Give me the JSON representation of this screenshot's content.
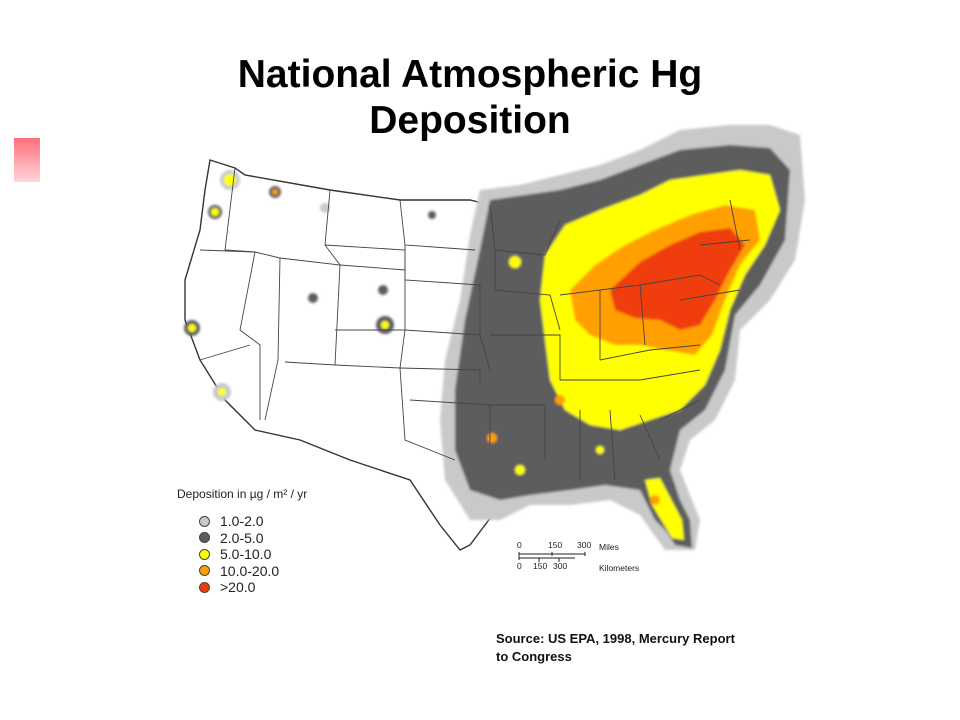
{
  "title_line1": "National Atmospheric Hg",
  "title_line2": "Deposition",
  "legend": {
    "title": "Deposition in µg / m² / yr",
    "items": [
      {
        "label": "1.0-2.0",
        "color": "#c9c9c9"
      },
      {
        "label": "2.0-5.0",
        "color": "#5d5d5d"
      },
      {
        "label": "5.0-10.0",
        "color": "#ffff00"
      },
      {
        "label": "10.0-20.0",
        "color": "#ffa000"
      },
      {
        "label": ">20.0",
        "color": "#f03c0a"
      }
    ]
  },
  "scale": {
    "miles_ticks": [
      "0",
      "150",
      "300"
    ],
    "miles_unit": "Miles",
    "km_ticks": [
      "0",
      "150",
      "300"
    ],
    "km_unit": "Kilometers"
  },
  "source": {
    "line1": "Source:  US EPA, 1998, Mercury Report",
    "line2": "to Congress"
  },
  "colors": {
    "accent": "#ff6f7a",
    "state_lines": "#444444"
  }
}
